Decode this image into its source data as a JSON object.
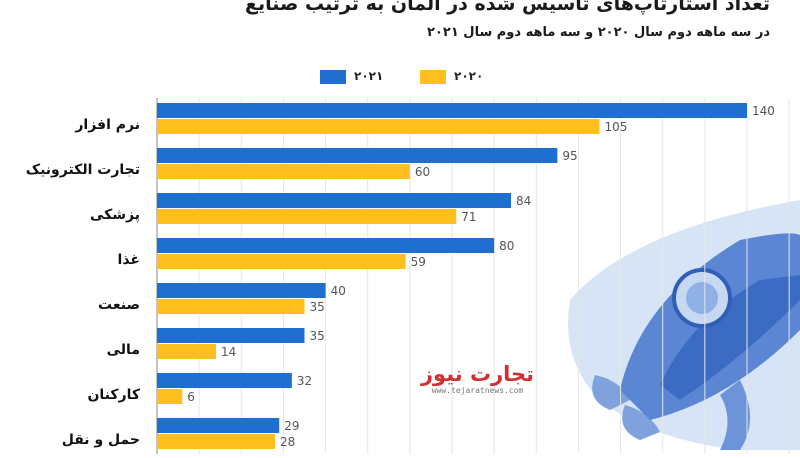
{
  "header": {
    "title": "تعداد استارتاپ‌های تاسیس شده در آلمان به ترتیب صنایع",
    "subtitle": "در سه ماهه دوم سال ۲۰۲۰ و سه ماهه دوم سال ۲۰۲۱"
  },
  "legend": [
    {
      "label": "۲۰۲۱",
      "color": "#1f6fd1"
    },
    {
      "label": "۲۰۲۰",
      "color": "#ffbf1f"
    }
  ],
  "watermark": {
    "logo": "تجارت نیوز",
    "url": "www.tejaratnews.com"
  },
  "chart_data": {
    "type": "bar",
    "orientation": "horizontal",
    "title": "تعداد استارتاپ‌های تاسیس شده در آلمان به ترتیب صنایع",
    "subtitle": "در سه ماهه دوم سال ۲۰۲۰ و سه ماهه دوم سال ۲۰۲۱",
    "categories": [
      "نرم افزار",
      "تجارت الکترونیک",
      "پزشکی",
      "غذا",
      "صنعت",
      "مالی",
      "کارکنان",
      "حمل و نقل"
    ],
    "series": [
      {
        "name": "۲۰۲۱",
        "color": "#1f6fd1",
        "values": [
          140,
          95,
          84,
          80,
          40,
          35,
          32,
          29
        ]
      },
      {
        "name": "۲۰۲۰",
        "color": "#ffbf1f",
        "values": [
          105,
          60,
          71,
          59,
          35,
          14,
          6,
          28
        ]
      }
    ],
    "xlim": [
      0,
      140
    ],
    "grid": true,
    "legend_position": "top"
  }
}
